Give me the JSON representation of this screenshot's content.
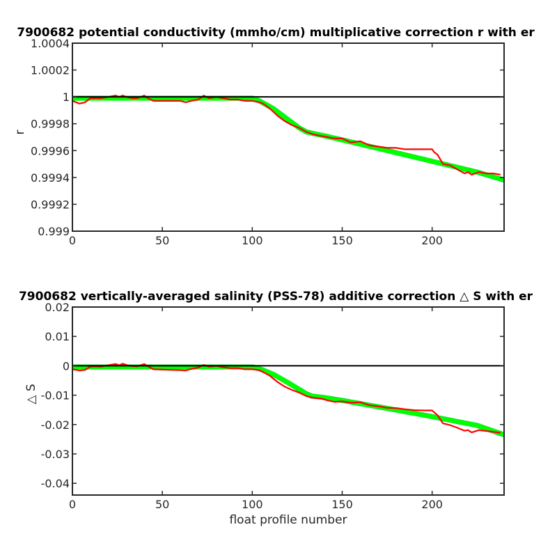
{
  "chart_data": [
    {
      "type": "line",
      "title": "7900682 potential conductivity (mmho/cm) multiplicative correction r with er",
      "xlabel": "",
      "ylabel": "r",
      "xlim": [
        0,
        240
      ],
      "ylim": [
        0.999,
        1.0004
      ],
      "x_ticks": [
        "0",
        "50",
        "100",
        "150",
        "200"
      ],
      "y_ticks": [
        "0.999",
        "0.9992",
        "0.9994",
        "0.9996",
        "0.9998",
        "1",
        "1.0002",
        "1.0004"
      ],
      "colors": {
        "fit": "#00ff00",
        "errorbar": "#0000ff",
        "raw": "#ff0000",
        "reference": "#000000"
      },
      "reference_line": 1,
      "series": [
        {
          "role": "fit",
          "x": [
            0,
            20,
            40,
            60,
            80,
            100,
            104,
            112,
            120,
            126,
            130,
            133,
            140,
            150,
            175,
            200,
            225,
            240
          ],
          "values": [
            0.99999,
            0.99999,
            0.99999,
            0.99999,
            0.99999,
            0.99999,
            0.99997,
            0.99991,
            0.99983,
            0.99977,
            0.99974,
            0.99973,
            0.99971,
            0.99968,
            0.9996,
            0.99952,
            0.99944,
            0.99938
          ],
          "error": 1.5e-05
        },
        {
          "role": "raw",
          "x": [
            0,
            4,
            7,
            10,
            13,
            16,
            20,
            24,
            26,
            28,
            30,
            33,
            36,
            40,
            42,
            45,
            50,
            55,
            60,
            63,
            66,
            70,
            73,
            76,
            80,
            84,
            88,
            92,
            96,
            100,
            104,
            106,
            110,
            114,
            118,
            122,
            126,
            130,
            134,
            138,
            142,
            146,
            150,
            155,
            160,
            165,
            170,
            175,
            180,
            185,
            190,
            195,
            200,
            201,
            203,
            206,
            210,
            214,
            218,
            220,
            222,
            226,
            230,
            234,
            238
          ],
          "values": [
            0.99997,
            0.99995,
            0.99996,
            0.99999,
            0.99999,
            0.99999,
            1.0,
            1.00001,
            1.0,
            1.00001,
            1.0,
            0.99999,
            0.99999,
            1.00001,
            0.99999,
            0.99997,
            0.99997,
            0.99997,
            0.99997,
            0.99996,
            0.99997,
            0.99998,
            1.00001,
            0.99999,
            1.0,
            0.99999,
            0.99998,
            0.99998,
            0.99997,
            0.99997,
            0.99996,
            0.99995,
            0.99991,
            0.99986,
            0.99982,
            0.99979,
            0.99977,
            0.99974,
            0.99972,
            0.99971,
            0.9997,
            0.99969,
            0.99969,
            0.99966,
            0.99967,
            0.99964,
            0.99963,
            0.99962,
            0.99962,
            0.99961,
            0.99961,
            0.99961,
            0.99961,
            0.99959,
            0.99957,
            0.9995,
            0.99949,
            0.99946,
            0.99943,
            0.99944,
            0.99942,
            0.99944,
            0.99943,
            0.99943,
            0.99942
          ]
        }
      ]
    },
    {
      "type": "line",
      "title": "7900682 vertically-averaged salinity (PSS-78) additive correction △ S with er",
      "xlabel": "float profile number",
      "ylabel": "△ S",
      "xlim": [
        0,
        240
      ],
      "ylim": [
        -0.044,
        0.02
      ],
      "x_ticks": [
        "0",
        "50",
        "100",
        "150",
        "200"
      ],
      "y_ticks": [
        "-0.04",
        "-0.03",
        "-0.02",
        "-0.01",
        "0",
        "0.01",
        "0.02"
      ],
      "colors": {
        "fit": "#00ff00",
        "errorbar": "#0000ff",
        "raw": "#ff0000",
        "reference": "#000000"
      },
      "reference_line": 0,
      "series": [
        {
          "role": "fit",
          "x": [
            0,
            20,
            40,
            60,
            80,
            100,
            104,
            112,
            120,
            126,
            130,
            133,
            140,
            150,
            175,
            200,
            225,
            240
          ],
          "values": [
            -0.0004,
            -0.0004,
            -0.0004,
            -0.0004,
            -0.0004,
            -0.0004,
            -0.001,
            -0.003,
            -0.0058,
            -0.008,
            -0.0095,
            -0.0103,
            -0.0108,
            -0.0118,
            -0.0145,
            -0.0173,
            -0.0203,
            -0.0235
          ],
          "error": 0.0007
        },
        {
          "role": "raw",
          "x": [
            0,
            4,
            7,
            10,
            13,
            16,
            20,
            24,
            26,
            28,
            30,
            33,
            36,
            40,
            42,
            45,
            50,
            55,
            60,
            63,
            66,
            70,
            73,
            76,
            80,
            84,
            88,
            92,
            96,
            100,
            104,
            106,
            110,
            114,
            118,
            122,
            126,
            130,
            134,
            138,
            142,
            146,
            150,
            155,
            160,
            165,
            170,
            175,
            180,
            185,
            190,
            195,
            200,
            201,
            203,
            206,
            210,
            214,
            218,
            220,
            222,
            226,
            230,
            234,
            238
          ],
          "values": [
            -0.0012,
            -0.0016,
            -0.0014,
            -0.0003,
            -0.0002,
            -0.0003,
            0.0002,
            0.0006,
            0.0002,
            0.0007,
            0.0003,
            -0.0001,
            -0.0002,
            0.0006,
            -0.0002,
            -0.0012,
            -0.0013,
            -0.0014,
            -0.0015,
            -0.0016,
            -0.0011,
            -0.0006,
            0.0003,
            -0.0003,
            0.0,
            -0.0005,
            -0.0008,
            -0.0008,
            -0.0012,
            -0.0012,
            -0.0015,
            -0.0021,
            -0.0035,
            -0.0055,
            -0.0071,
            -0.0082,
            -0.0091,
            -0.0103,
            -0.0109,
            -0.0111,
            -0.0118,
            -0.0123,
            -0.0121,
            -0.0126,
            -0.0124,
            -0.0134,
            -0.0138,
            -0.0143,
            -0.0144,
            -0.0148,
            -0.0151,
            -0.0152,
            -0.0152,
            -0.0158,
            -0.0168,
            -0.0196,
            -0.0202,
            -0.0211,
            -0.0221,
            -0.0219,
            -0.0227,
            -0.0219,
            -0.0222,
            -0.0225,
            -0.0228
          ]
        }
      ]
    }
  ]
}
